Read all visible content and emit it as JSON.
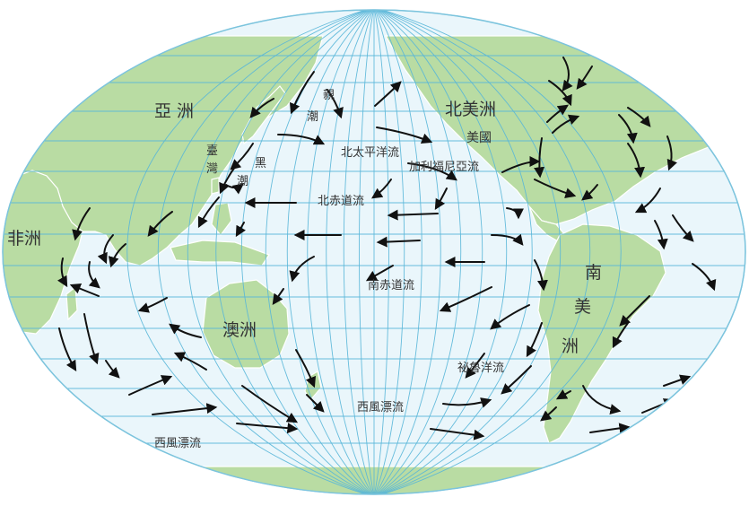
{
  "map": {
    "colors": {
      "ocean": "#eaf6fb",
      "grid": "#58b6d8",
      "land": "#b9dca3",
      "arrow": "#111111",
      "label": "#333333"
    },
    "continents": {
      "asia": "亞 洲",
      "africa": "非洲",
      "north_america": "北美洲",
      "usa": "美國",
      "south_america_1": "南",
      "south_america_2": "美",
      "south_america_3": "洲",
      "oceania": "澳洲"
    },
    "currents": {
      "oyashio_1": "親",
      "oyashio_2": "潮",
      "taiwan_1": "臺",
      "taiwan_2": "灣",
      "kuroshio_1": "黑",
      "kuroshio_2": "潮",
      "north_pacific": "北太平洋流",
      "california": "加利福尼亞流",
      "north_equatorial": "北赤道流",
      "south_equatorial": "南赤道流",
      "peru": "祕魯洋流",
      "west_wind_drift_1": "西風漂流",
      "west_wind_drift_2": "西風漂流"
    }
  }
}
